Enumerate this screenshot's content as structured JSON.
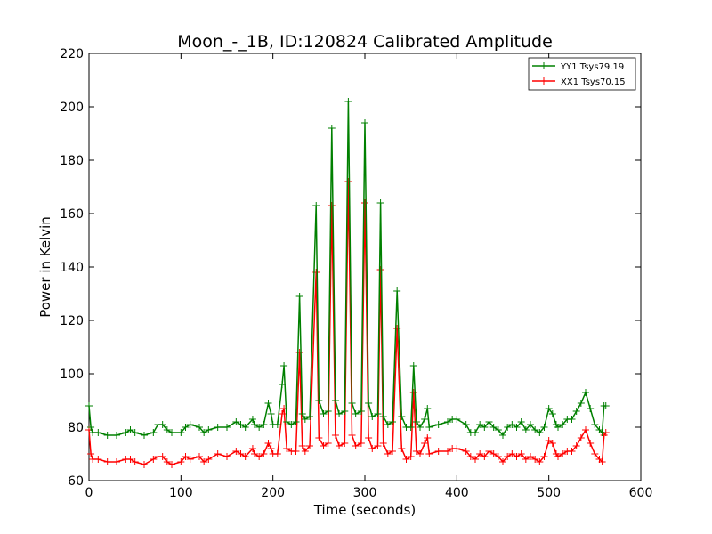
{
  "chart_data": {
    "type": "line",
    "title": "Moon_-_1B, ID:120824 Calibrated Amplitude",
    "xlabel": "Time (seconds)",
    "ylabel": "Power in Kelvin",
    "xlim": [
      0,
      600
    ],
    "ylim": [
      60,
      220
    ],
    "x_ticks": [
      "0",
      "100",
      "200",
      "300",
      "400",
      "500",
      "600"
    ],
    "y_ticks": [
      "60",
      "80",
      "100",
      "120",
      "140",
      "160",
      "180",
      "200",
      "220"
    ],
    "grid": false,
    "legend_position": "top-right",
    "marker": "+",
    "series": [
      {
        "name": "YY1 Tsys79.19",
        "color": "#008000",
        "x": [
          0,
          2,
          4,
          10,
          20,
          30,
          40,
          45,
          50,
          60,
          70,
          75,
          80,
          85,
          90,
          100,
          105,
          110,
          120,
          125,
          130,
          140,
          150,
          160,
          165,
          170,
          178,
          180,
          185,
          190,
          195,
          198,
          200,
          205,
          210,
          212,
          215,
          220,
          225,
          229,
          232,
          235,
          240,
          247,
          250,
          255,
          260,
          264,
          268,
          272,
          278,
          282,
          286,
          290,
          296,
          300,
          304,
          308,
          314,
          317,
          320,
          325,
          330,
          335,
          340,
          345,
          350,
          353,
          356,
          360,
          365,
          368,
          370,
          380,
          390,
          395,
          400,
          410,
          415,
          420,
          425,
          430,
          435,
          440,
          445,
          450,
          455,
          460,
          465,
          470,
          475,
          480,
          485,
          490,
          495,
          500,
          504,
          508,
          510,
          515,
          520,
          525,
          530,
          535,
          540,
          545,
          550,
          555,
          558,
          560,
          562
        ],
        "y": [
          88,
          80,
          78,
          78,
          77,
          77,
          78,
          79,
          78,
          77,
          78,
          81,
          81,
          79,
          78,
          78,
          80,
          81,
          80,
          78,
          79,
          80,
          80,
          82,
          81,
          80,
          83,
          81,
          80,
          81,
          89,
          85,
          81,
          81,
          96,
          103,
          82,
          81,
          82,
          129,
          85,
          83,
          84,
          163,
          90,
          85,
          86,
          192,
          90,
          85,
          86,
          202,
          89,
          85,
          86,
          194,
          89,
          84,
          85,
          164,
          84,
          81,
          82,
          131,
          84,
          80,
          80,
          103,
          82,
          80,
          83,
          87,
          80,
          81,
          82,
          83,
          83,
          81,
          78,
          78,
          81,
          80,
          82,
          80,
          79,
          77,
          80,
          81,
          80,
          82,
          79,
          81,
          79,
          78,
          80,
          87,
          85,
          81,
          80,
          81,
          83,
          83,
          86,
          89,
          93,
          87,
          81,
          79,
          78,
          88,
          88
        ]
      },
      {
        "name": "XX1 Tsys70.15",
        "color": "#ff0000",
        "x": [
          0,
          2,
          4,
          10,
          20,
          30,
          40,
          45,
          50,
          60,
          70,
          75,
          80,
          85,
          90,
          100,
          105,
          110,
          120,
          125,
          130,
          140,
          150,
          160,
          165,
          170,
          178,
          180,
          185,
          190,
          195,
          198,
          200,
          205,
          210,
          212,
          215,
          220,
          225,
          229,
          232,
          235,
          240,
          247,
          250,
          255,
          260,
          264,
          268,
          272,
          278,
          282,
          286,
          290,
          296,
          300,
          304,
          308,
          314,
          317,
          320,
          325,
          330,
          335,
          340,
          345,
          350,
          353,
          356,
          360,
          365,
          368,
          370,
          380,
          390,
          395,
          400,
          410,
          415,
          420,
          425,
          430,
          435,
          440,
          445,
          450,
          455,
          460,
          465,
          470,
          475,
          480,
          485,
          490,
          495,
          500,
          504,
          508,
          510,
          515,
          520,
          525,
          530,
          535,
          540,
          545,
          550,
          555,
          558,
          560,
          562
        ],
        "y": [
          79,
          70,
          68,
          68,
          67,
          67,
          68,
          68,
          67,
          66,
          68,
          69,
          69,
          67,
          66,
          67,
          69,
          68,
          69,
          67,
          68,
          70,
          69,
          71,
          70,
          69,
          72,
          70,
          69,
          70,
          74,
          72,
          70,
          70,
          85,
          87,
          72,
          71,
          71,
          108,
          73,
          71,
          73,
          138,
          76,
          73,
          74,
          163,
          77,
          73,
          74,
          172,
          77,
          73,
          74,
          164,
          76,
          72,
          73,
          139,
          74,
          70,
          71,
          117,
          72,
          68,
          69,
          93,
          71,
          70,
          74,
          76,
          70,
          71,
          71,
          72,
          72,
          71,
          69,
          68,
          70,
          69,
          71,
          70,
          69,
          67,
          69,
          70,
          69,
          70,
          68,
          69,
          68,
          67,
          69,
          75,
          74,
          70,
          69,
          70,
          71,
          71,
          73,
          76,
          79,
          74,
          70,
          68,
          67,
          77,
          78
        ]
      }
    ]
  }
}
